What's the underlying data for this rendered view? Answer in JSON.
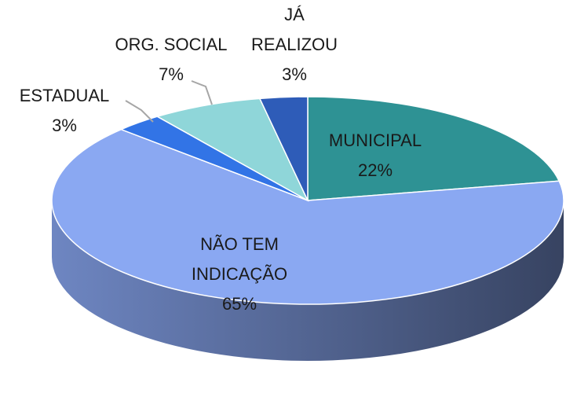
{
  "chart_data": {
    "type": "pie",
    "categories": [
      "MUNICIPAL",
      "NÃO TEM INDICAÇÃO",
      "ESTADUAL",
      "ORG. SOCIAL",
      "JÁ REALIZOU"
    ],
    "values": [
      22,
      65,
      3,
      7,
      3
    ],
    "value_labels": [
      "22%",
      "65%",
      "3%",
      "7%",
      "3%"
    ],
    "colors": [
      "#2e9294",
      "#8aa8f2",
      "#3274e6",
      "#8fd6d9",
      "#2e5cb8"
    ]
  }
}
